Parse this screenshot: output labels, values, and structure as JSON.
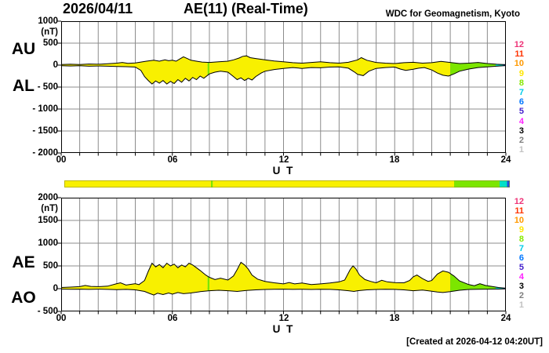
{
  "header": {
    "date": "2026/04/11",
    "title": "AE(11) (Real-Time)",
    "source": "WDC for Geomagnetism, Kyoto"
  },
  "footer": {
    "created": "[Created at 2026-04-12 04:20UT]"
  },
  "colors": {
    "yellow": "#F8F000",
    "green": "#7CE600",
    "cyan": "#00E0C8",
    "blue": "#2050E0",
    "grid": "#8C8C8C",
    "frame": "#000000",
    "curve": "#000000",
    "bar_border": "#8A8A00"
  },
  "station_legend": {
    "counts": [
      "12",
      "11",
      "10",
      "9",
      "8",
      "7",
      "6",
      "5",
      "4",
      "3",
      "2",
      "1"
    ],
    "colors": [
      "#EE3377",
      "#FF3300",
      "#FF9900",
      "#FFE600",
      "#86E800",
      "#00CCE8",
      "#0077FF",
      "#4422CC",
      "#FF22FF",
      "#000000",
      "#7F7F7F",
      "#C2C2C2"
    ]
  },
  "chart_data": {
    "type": "area",
    "title": "AE(11) (Real-Time) 2026/04/11",
    "xlabel": "U T",
    "xlim": [
      0,
      24
    ],
    "xticks": [
      0,
      6,
      12,
      18,
      24
    ],
    "xtick_labels": [
      "00",
      "06",
      "12",
      "18",
      "24"
    ],
    "grid": true,
    "legend_position": "right",
    "station_segments": [
      {
        "from": 0.0,
        "to": 7.9,
        "stations": 9,
        "color": "yellow"
      },
      {
        "from": 7.9,
        "to": 8.0,
        "stations": 8,
        "color": "green"
      },
      {
        "from": 8.0,
        "to": 21.0,
        "stations": 9,
        "color": "yellow"
      },
      {
        "from": 21.0,
        "to": 23.45,
        "stations": 8,
        "color": "green"
      },
      {
        "from": 23.45,
        "to": 23.85,
        "stations": 7,
        "color": "cyan"
      },
      {
        "from": 23.85,
        "to": 24.0,
        "stations": 6,
        "color": "blue"
      }
    ],
    "panels": [
      {
        "name": "AU-AL",
        "unit": "(nT)",
        "left_labels": [
          "AU",
          "AL"
        ],
        "ylim": [
          -2000,
          1000
        ],
        "yticks": [
          1000,
          500,
          0,
          -500,
          -1000,
          -1500,
          -2000
        ],
        "ytick_labels": [
          "1000",
          "500",
          "0",
          "- 500",
          "- 1000",
          "- 1500",
          "- 2000"
        ],
        "series": [
          {
            "name": "AU",
            "x": [
              0,
              0.5,
              1,
              1.5,
              2,
              2.5,
              3,
              3.3,
              3.6,
              4,
              4.3,
              4.6,
              5,
              5.3,
              5.6,
              5.8,
              6,
              6.2,
              6.4,
              6.6,
              6.8,
              7,
              7.3,
              7.6,
              8,
              8.5,
              9,
              9.3,
              9.6,
              9.8,
              10,
              10.2,
              10.5,
              11,
              11.5,
              12,
              12.5,
              13,
              13.5,
              14,
              14.5,
              15,
              15.5,
              16,
              16.2,
              16.5,
              17,
              17.5,
              18,
              18.5,
              19,
              19.5,
              20,
              20.5,
              21,
              21.5,
              22,
              22.5,
              23,
              23.5,
              24
            ],
            "values": [
              15,
              20,
              15,
              25,
              20,
              30,
              45,
              60,
              40,
              50,
              70,
              90,
              110,
              90,
              120,
              100,
              110,
              90,
              140,
              190,
              150,
              110,
              90,
              70,
              60,
              75,
              90,
              120,
              160,
              200,
              210,
              170,
              150,
              120,
              95,
              75,
              55,
              45,
              60,
              75,
              55,
              45,
              65,
              120,
              170,
              110,
              60,
              45,
              35,
              55,
              65,
              45,
              55,
              85,
              60,
              35,
              45,
              60,
              35,
              20,
              10
            ]
          },
          {
            "name": "AL",
            "x": [
              0,
              0.5,
              1,
              1.5,
              2,
              2.5,
              3,
              3.5,
              4,
              4.3,
              4.5,
              4.7,
              4.9,
              5.1,
              5.3,
              5.5,
              5.7,
              5.9,
              6.1,
              6.3,
              6.5,
              6.7,
              6.9,
              7.1,
              7.3,
              7.5,
              7.7,
              8,
              8.3,
              8.6,
              9,
              9.3,
              9.5,
              9.7,
              9.9,
              10.1,
              10.3,
              10.5,
              10.8,
              11,
              11.5,
              12,
              12.5,
              13,
              13.5,
              14,
              14.5,
              15,
              15.5,
              15.8,
              16,
              16.3,
              16.6,
              17,
              17.5,
              18,
              18.3,
              18.6,
              19,
              19.3,
              19.6,
              20,
              20.3,
              20.6,
              20.9,
              21.2,
              21.5,
              22,
              22.5,
              23,
              23.5,
              24
            ],
            "values": [
              -15,
              -20,
              -15,
              -25,
              -20,
              -25,
              -30,
              -35,
              -45,
              -120,
              -260,
              -350,
              -430,
              -360,
              -410,
              -350,
              -430,
              -370,
              -420,
              -330,
              -390,
              -300,
              -360,
              -280,
              -330,
              -250,
              -300,
              -200,
              -160,
              -140,
              -160,
              -260,
              -330,
              -290,
              -350,
              -300,
              -340,
              -260,
              -180,
              -140,
              -100,
              -75,
              -55,
              -75,
              -55,
              -60,
              -45,
              -40,
              -70,
              -150,
              -210,
              -240,
              -140,
              -75,
              -55,
              -45,
              -90,
              -120,
              -95,
              -70,
              -55,
              -110,
              -180,
              -230,
              -250,
              -200,
              -140,
              -90,
              -55,
              -40,
              -25,
              -10
            ]
          }
        ]
      },
      {
        "name": "AE-AO",
        "unit": "(nT)",
        "left_labels": [
          "AE",
          "AO"
        ],
        "ylim": [
          -500,
          2000
        ],
        "yticks": [
          2000,
          1500,
          1000,
          500,
          0,
          -500
        ],
        "ytick_labels": [
          "2000",
          "1500",
          "1000",
          "500",
          "0",
          "- 500"
        ],
        "series": [
          {
            "name": "AE",
            "x": [
              0,
              0.5,
              1,
              1.3,
              1.6,
              2,
              2.5,
              3,
              3.2,
              3.5,
              4,
              4.2,
              4.5,
              4.7,
              4.9,
              5.1,
              5.3,
              5.5,
              5.7,
              5.9,
              6.1,
              6.3,
              6.5,
              6.7,
              6.9,
              7.1,
              7.3,
              7.5,
              7.8,
              8,
              8.3,
              8.6,
              9,
              9.3,
              9.5,
              9.7,
              9.9,
              10.1,
              10.3,
              10.6,
              11,
              11.5,
              12,
              12.3,
              12.6,
              13,
              13.5,
              14,
              14.5,
              15,
              15.3,
              15.6,
              15.75,
              15.9,
              16.1,
              16.4,
              16.7,
              17,
              17.3,
              17.6,
              18,
              18.5,
              18.8,
              19,
              19.2,
              19.5,
              19.8,
              20,
              20.3,
              20.6,
              20.9,
              21.2,
              21.5,
              22,
              22.3,
              22.6,
              22.9,
              23.3,
              23.6,
              24
            ],
            "values": [
              25,
              35,
              45,
              70,
              50,
              45,
              55,
              110,
              130,
              80,
              110,
              90,
              180,
              380,
              560,
              480,
              530,
              460,
              560,
              500,
              540,
              460,
              520,
              480,
              560,
              520,
              460,
              400,
              300,
              250,
              200,
              230,
              190,
              280,
              420,
              580,
              520,
              430,
              300,
              210,
              160,
              130,
              105,
              135,
              105,
              125,
              90,
              105,
              125,
              150,
              190,
              420,
              500,
              440,
              300,
              200,
              160,
              130,
              185,
              150,
              135,
              130,
              180,
              260,
              300,
              220,
              160,
              180,
              320,
              390,
              360,
              280,
              170,
              90,
              65,
              110,
              70,
              45,
              25,
              10
            ]
          },
          {
            "name": "AO",
            "x": [
              0,
              0.5,
              1,
              1.5,
              2,
              2.5,
              3,
              3.5,
              4,
              4.5,
              4.8,
              5,
              5.2,
              5.5,
              5.8,
              6,
              6.3,
              6.6,
              7,
              7.5,
              8,
              8.5,
              9,
              9.5,
              10,
              10.5,
              11,
              11.5,
              12,
              12.5,
              13,
              13.5,
              14,
              14.5,
              15,
              15.5,
              15.8,
              16,
              16.5,
              17,
              17.5,
              18,
              18.5,
              19,
              19.5,
              20,
              20.3,
              20.6,
              21,
              21.5,
              22,
              22.5,
              23,
              23.5,
              24
            ],
            "values": [
              -8,
              -12,
              -10,
              -15,
              -10,
              -15,
              -20,
              -15,
              -25,
              -60,
              -110,
              -140,
              -100,
              -130,
              -95,
              -120,
              -85,
              -110,
              -95,
              -65,
              -45,
              -35,
              -45,
              -60,
              -40,
              -25,
              -18,
              -12,
              -10,
              -15,
              -12,
              -18,
              -12,
              -15,
              -25,
              -45,
              -60,
              -45,
              -25,
              -18,
              -12,
              -15,
              -25,
              -45,
              -30,
              -55,
              -75,
              -85,
              -65,
              -35,
              -18,
              -12,
              -10,
              -8,
              -5
            ]
          }
        ]
      }
    ]
  }
}
